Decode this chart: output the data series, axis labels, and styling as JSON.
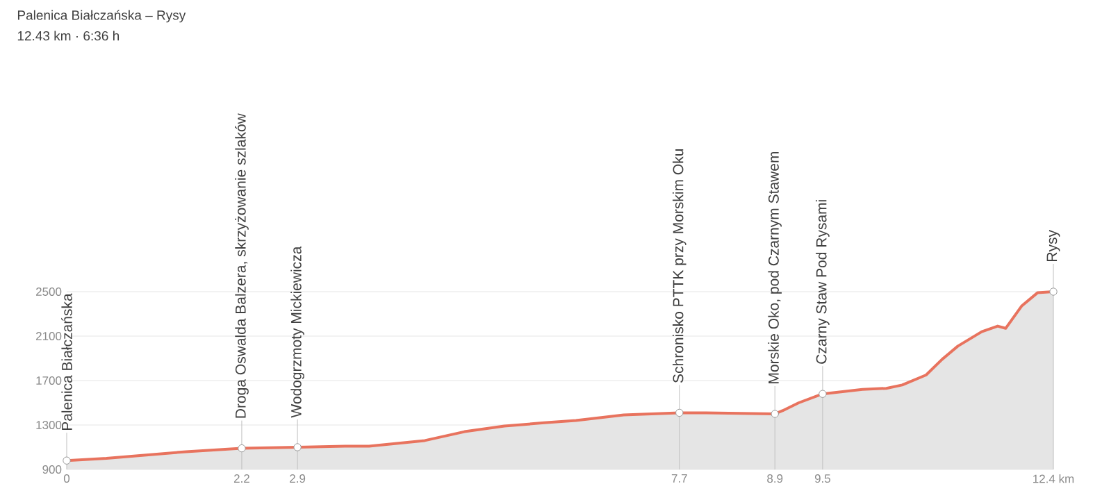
{
  "chart_data": {
    "type": "area",
    "title": "Palenica Białczańska – Rysy",
    "subtitle": "12.43 km · 6:36 h",
    "x": [
      0,
      0.5,
      1,
      1.5,
      2.2,
      2.9,
      3.5,
      3.8,
      4.5,
      5,
      5.5,
      6,
      6.4,
      7,
      7.7,
      8,
      8.9,
      9,
      9.2,
      9.5,
      10,
      10.3,
      10.5,
      10.8,
      11,
      11.2,
      11.5,
      11.7,
      11.8,
      12,
      12.2,
      12.4
    ],
    "series": [
      {
        "color": "#e8735e",
        "values": [
          980,
          1000,
          1030,
          1060,
          1090,
          1100,
          1110,
          1110,
          1160,
          1240,
          1290,
          1320,
          1340,
          1390,
          1410,
          1410,
          1400,
          1430,
          1500,
          1580,
          1620,
          1630,
          1660,
          1750,
          1890,
          2010,
          2140,
          2190,
          2170,
          2370,
          2490,
          2500
        ]
      }
    ],
    "xlim": [
      0,
      12.4
    ],
    "ylim": [
      900,
      2500
    ],
    "xticks": [
      0,
      2.2,
      2.9,
      7.7,
      8.9,
      9.5,
      {
        "value": 12.4,
        "label": "12.4 km"
      }
    ],
    "yticks": [
      900,
      1300,
      1700,
      2100,
      2500
    ],
    "grid": "y",
    "annotations": [
      {
        "text": "Palenica Białczańska",
        "x": 0,
        "y": 980
      },
      {
        "text": "Droga Oswalda Balzera, skrzyżowanie szlaków",
        "x": 2.2,
        "y": 1090
      },
      {
        "text": "Wodogrzmoty Mickiewicza",
        "x": 2.9,
        "y": 1100
      },
      {
        "text": "Schronisko PTTK przy Morskim Oku",
        "x": 7.7,
        "y": 1410
      },
      {
        "text": "Morskie Oko, pod Czarnym Stawem",
        "x": 8.9,
        "y": 1400
      },
      {
        "text": "Czarny Staw Pod Rysami",
        "x": 9.5,
        "y": 1580
      },
      {
        "text": "Rysy",
        "x": 12.4,
        "y": 2500
      }
    ]
  }
}
